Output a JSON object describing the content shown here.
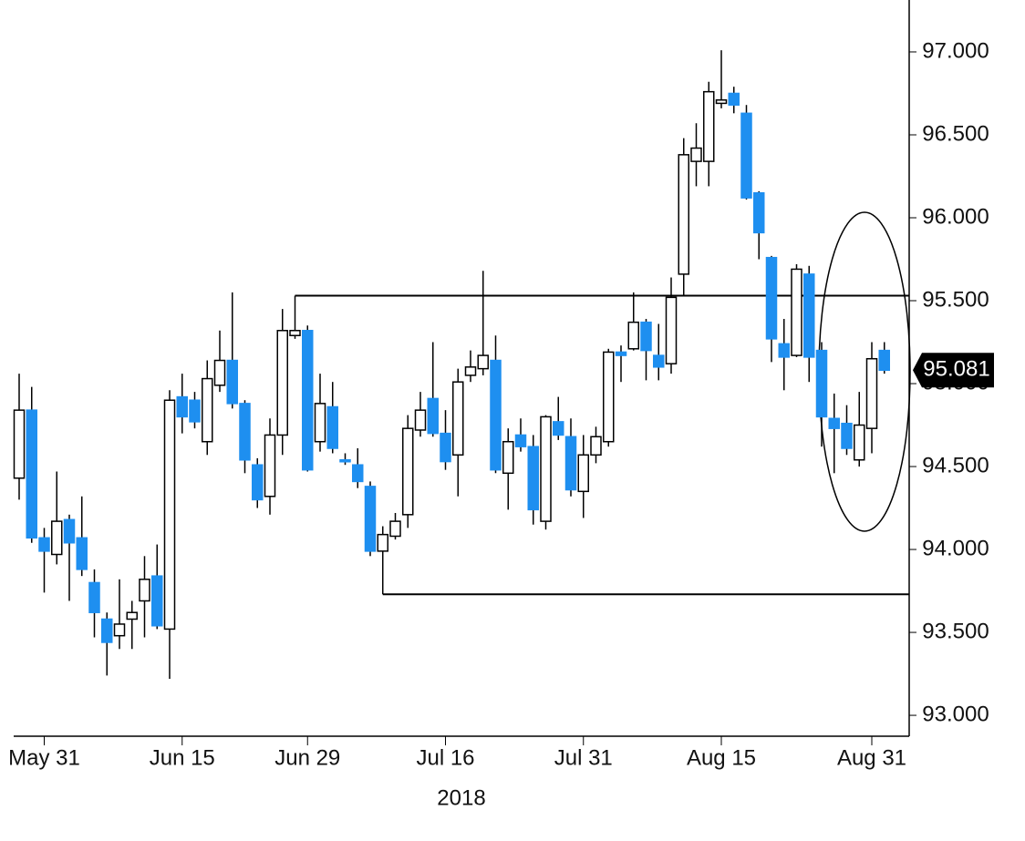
{
  "chart_data": {
    "type": "candlestick",
    "categories": [
      null,
      null,
      "May 31",
      null,
      null,
      null,
      null,
      null,
      null,
      null,
      null,
      null,
      null,
      "Jun 15",
      null,
      null,
      null,
      null,
      null,
      null,
      null,
      null,
      null,
      "Jun 29",
      null,
      null,
      null,
      null,
      null,
      null,
      null,
      null,
      null,
      null,
      "Jul 16",
      null,
      null,
      null,
      null,
      null,
      null,
      null,
      null,
      null,
      null,
      "Jul 31",
      null,
      null,
      null,
      null,
      null,
      null,
      null,
      null,
      null,
      null,
      "Aug 15",
      null,
      null,
      null,
      null,
      null,
      null,
      null,
      null,
      null,
      null,
      null,
      "Aug 31",
      null
    ],
    "x_label": "2018",
    "open": [
      94.43,
      94.84,
      94.07,
      93.97,
      94.18,
      94.07,
      93.8,
      93.58,
      93.48,
      93.58,
      93.69,
      93.84,
      93.52,
      94.92,
      94.9,
      94.65,
      94.99,
      95.14,
      94.88,
      94.51,
      94.32,
      94.69,
      95.29,
      95.32,
      94.65,
      94.86,
      94.54,
      94.51,
      94.38,
      93.99,
      94.08,
      94.21,
      94.72,
      94.91,
      94.7,
      94.57,
      95.05,
      95.09,
      95.14,
      94.46,
      94.69,
      94.62,
      94.17,
      94.77,
      94.68,
      94.35,
      94.57,
      94.65,
      95.19,
      95.21,
      95.37,
      95.17,
      95.12,
      95.66,
      96.34,
      96.34,
      96.69,
      96.75,
      96.63,
      96.15,
      95.76,
      95.24,
      95.17,
      95.66,
      95.2,
      94.79,
      94.76,
      94.54,
      94.73,
      95.2
    ],
    "high": [
      95.06,
      94.98,
      94.13,
      94.47,
      94.21,
      94.32,
      93.88,
      93.62,
      93.82,
      93.69,
      93.96,
      94.03,
      94.96,
      95.06,
      94.95,
      95.14,
      95.32,
      95.55,
      94.9,
      94.55,
      94.79,
      95.45,
      95.53,
      95.35,
      95.06,
      95.01,
      94.58,
      94.61,
      94.41,
      94.14,
      94.22,
      94.81,
      94.95,
      95.25,
      94.84,
      95.09,
      95.2,
      95.68,
      95.29,
      94.73,
      94.79,
      94.69,
      94.81,
      94.92,
      94.79,
      94.69,
      94.74,
      95.21,
      95.23,
      95.55,
      95.39,
      95.36,
      95.64,
      96.48,
      96.57,
      96.82,
      97.01,
      96.79,
      96.68,
      96.16,
      95.77,
      95.39,
      95.72,
      95.71,
      95.25,
      94.94,
      94.87,
      94.95,
      95.25,
      95.25
    ],
    "low": [
      94.3,
      94.04,
      93.74,
      93.91,
      93.69,
      93.84,
      93.47,
      93.24,
      93.4,
      93.4,
      93.47,
      93.52,
      93.22,
      94.7,
      94.73,
      94.57,
      94.95,
      94.85,
      94.46,
      94.25,
      94.21,
      94.57,
      95.27,
      94.47,
      94.59,
      94.58,
      94.51,
      94.37,
      93.96,
      93.73,
      94.06,
      94.13,
      94.68,
      94.68,
      94.48,
      94.32,
      95.01,
      95.05,
      94.46,
      94.24,
      94.59,
      94.15,
      94.12,
      94.66,
      94.32,
      94.19,
      94.52,
      94.62,
      95.01,
      95.2,
      95.02,
      95.02,
      95.06,
      95.53,
      96.19,
      96.19,
      96.66,
      96.63,
      96.11,
      95.75,
      95.13,
      94.96,
      95.16,
      95.01,
      94.62,
      94.46,
      94.57,
      94.5,
      94.58,
      95.06
    ],
    "close": [
      94.84,
      94.07,
      93.99,
      94.17,
      94.04,
      93.88,
      93.62,
      93.44,
      93.55,
      93.62,
      93.82,
      93.54,
      94.9,
      94.8,
      94.77,
      95.03,
      95.14,
      94.88,
      94.54,
      94.3,
      94.69,
      95.32,
      95.32,
      94.48,
      94.88,
      94.61,
      94.53,
      94.41,
      93.99,
      94.09,
      94.17,
      94.73,
      94.84,
      94.7,
      94.53,
      95.01,
      95.1,
      95.17,
      94.48,
      94.65,
      94.62,
      94.24,
      94.8,
      94.69,
      94.36,
      94.57,
      94.68,
      95.19,
      95.17,
      95.37,
      95.2,
      95.1,
      95.52,
      96.38,
      96.42,
      96.76,
      96.71,
      96.68,
      96.12,
      95.91,
      95.27,
      95.16,
      95.69,
      95.16,
      94.8,
      94.73,
      94.61,
      94.75,
      95.15,
      95.081
    ],
    "last_price": 95.081,
    "up_color": "#ffffff",
    "down_color": "#1e8ff0",
    "hlines": [
      {
        "value": 95.53,
        "start": 22
      },
      {
        "value": 93.73,
        "start": 29
      }
    ],
    "ylim": [
      92.874,
      97.313
    ],
    "yticks": [
      {
        "value": 93,
        "label": "93.000"
      },
      {
        "value": 93.5,
        "label": "93.500"
      },
      {
        "value": 94,
        "label": "94.000"
      },
      {
        "value": 94.5,
        "label": "94.500"
      },
      {
        "value": 95,
        "label": "95.000"
      },
      {
        "value": 95.5,
        "label": "95.500"
      },
      {
        "value": 96,
        "label": "96.000"
      },
      {
        "value": 96.5,
        "label": "96.500"
      },
      {
        "value": 97,
        "label": "97.000"
      }
    ]
  }
}
